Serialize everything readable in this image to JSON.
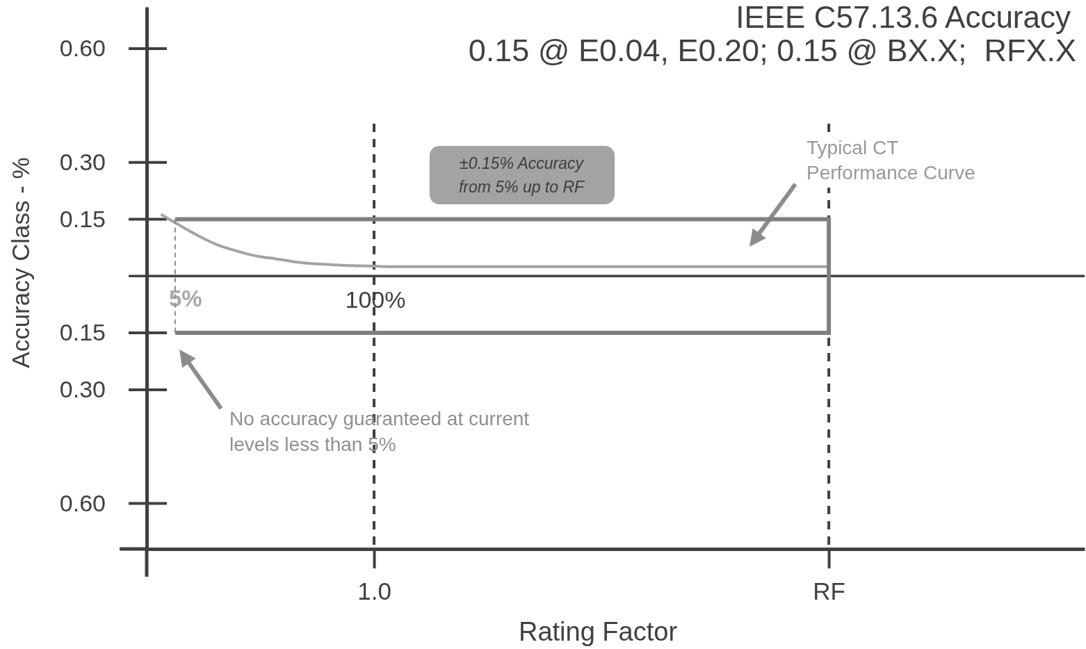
{
  "chart_data": {
    "type": "line",
    "title": "IEEE C57.13.6 Accuracy",
    "subtitle": "0.15 @ E0.04, E0.20; 0.15 @ BX.X;  RFX.X",
    "xlabel": "Rating Factor",
    "ylabel": "Accuracy Class - %",
    "categories": [
      null,
      null,
      null,
      null,
      null,
      null,
      null,
      null,
      null,
      null,
      null,
      null,
      null,
      null,
      null,
      null,
      "1.0",
      null,
      null,
      null,
      null,
      null,
      null,
      null,
      null,
      null,
      null,
      null,
      null,
      null,
      null,
      null,
      null,
      null,
      null,
      null,
      null,
      null,
      null,
      null,
      null,
      null,
      null,
      null,
      null,
      null,
      null,
      null,
      "RF",
      null,
      null,
      null,
      null,
      null,
      null,
      null,
      null,
      null,
      null,
      null,
      null,
      null,
      null,
      null,
      null,
      null,
      null
    ],
    "ylim": [
      -0.72,
      0.71
    ],
    "yticks": [
      {
        "value": 0.6,
        "label": "0.60"
      },
      {
        "value": 0.3,
        "label": "0.30"
      },
      {
        "value": 0.15,
        "label": "0.15"
      },
      {
        "value": -0.15,
        "label": "0.15"
      },
      {
        "value": -0.3,
        "label": "0.30"
      },
      {
        "value": -0.6,
        "label": "0.60"
      }
    ],
    "grid": "x",
    "series": [
      {
        "color": "#a3a3a3",
        "values": [
          null,
          0.163,
          0.141,
          0.119,
          0.099,
          0.082,
          0.07,
          0.059,
          0.051,
          0.046,
          0.04,
          0.035,
          0.032,
          0.03,
          0.028,
          0.027,
          0.026,
          0.025,
          0.025,
          0.025,
          0.025,
          0.025,
          0.025,
          0.025,
          0.025,
          0.025,
          0.025,
          0.025,
          0.025,
          0.025,
          0.025,
          0.025,
          0.025,
          0.025,
          0.025,
          0.025,
          0.025,
          0.025,
          0.025,
          0.025,
          0.025,
          0.025,
          0.025,
          0.025,
          0.025,
          0.025,
          0.025,
          0.025,
          0.025,
          null,
          null,
          null,
          null,
          null,
          null,
          null,
          null,
          null,
          null,
          null,
          null,
          null,
          null,
          null,
          null,
          null,
          null
        ]
      },
      {
        "color": "#808080",
        "values": [
          null,
          null,
          0.15,
          0.15,
          0.15,
          0.15,
          0.15,
          0.15,
          0.15,
          0.15,
          0.15,
          0.15,
          0.15,
          0.15,
          0.15,
          0.15,
          0.15,
          0.15,
          0.15,
          0.15,
          0.15,
          0.15,
          0.15,
          0.15,
          0.15,
          0.15,
          0.15,
          0.15,
          0.15,
          0.15,
          0.15,
          0.15,
          0.15,
          0.15,
          0.15,
          0.15,
          0.15,
          0.15,
          0.15,
          0.15,
          0.15,
          0.15,
          0.15,
          0.15,
          0.15,
          0.15,
          0.15,
          0.15,
          0.15,
          null,
          null,
          null,
          null,
          null,
          null,
          null,
          null,
          null,
          null,
          null,
          null,
          null,
          null,
          null,
          null,
          null,
          null
        ]
      },
      {
        "color": "#808080",
        "values": [
          null,
          null,
          -0.15,
          -0.15,
          -0.15,
          -0.15,
          -0.15,
          -0.15,
          -0.15,
          -0.15,
          -0.15,
          -0.15,
          -0.15,
          -0.15,
          -0.15,
          -0.15,
          -0.15,
          -0.15,
          -0.15,
          -0.15,
          -0.15,
          -0.15,
          -0.15,
          -0.15,
          -0.15,
          -0.15,
          -0.15,
          -0.15,
          -0.15,
          -0.15,
          -0.15,
          -0.15,
          -0.15,
          -0.15,
          -0.15,
          -0.15,
          -0.15,
          -0.15,
          -0.15,
          -0.15,
          -0.15,
          -0.15,
          -0.15,
          -0.15,
          -0.15,
          -0.15,
          -0.15,
          -0.15,
          -0.15,
          null,
          null,
          null,
          null,
          null,
          null,
          null,
          null,
          null,
          null,
          null,
          null,
          null,
          null,
          null,
          null,
          null,
          null
        ]
      }
    ],
    "ref_lines": [
      {
        "axis": "y",
        "value": 0,
        "color": "#404040"
      }
    ],
    "annotations": [
      "±0.15% Accuracy\nfrom 5% up to RF",
      "Typical CT\nPerformance Curve",
      "No accuracy guaranteed at current\nlevels less than 5%",
      {
        "text": "5%",
        "y": 0
      },
      "100%"
    ]
  }
}
